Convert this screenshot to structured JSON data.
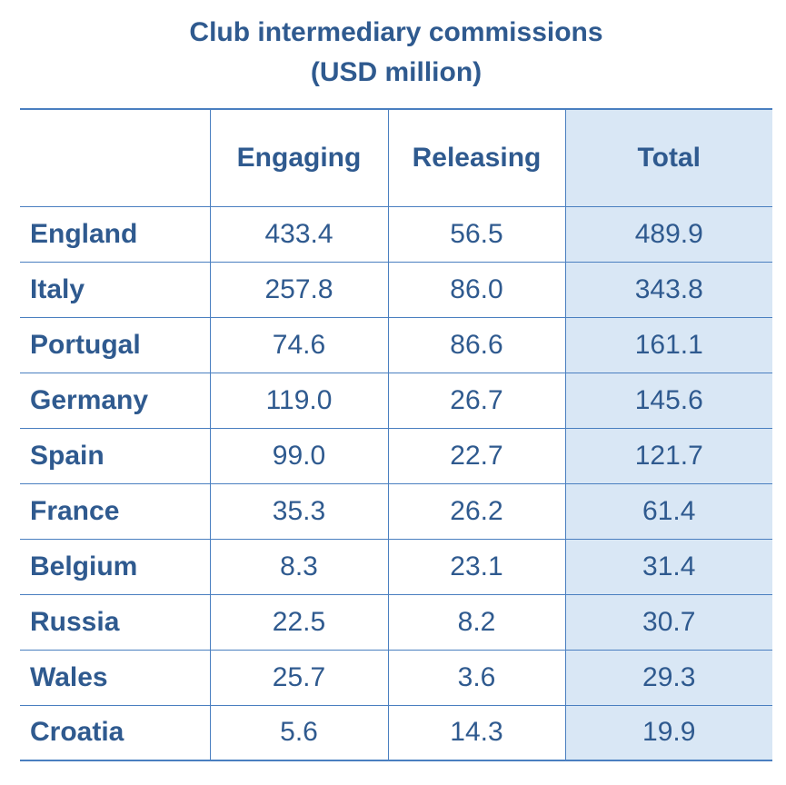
{
  "title_line1": "Club intermediary commissions",
  "title_line2": "(USD million)",
  "chart_data": {
    "type": "table",
    "title": "Club intermediary commissions (USD million)",
    "columns": [
      "",
      "Engaging",
      "Releasing",
      "Total"
    ],
    "rows": [
      {
        "country": "England",
        "engaging": "433.4",
        "releasing": "56.5",
        "total": "489.9"
      },
      {
        "country": "Italy",
        "engaging": "257.8",
        "releasing": "86.0",
        "total": "343.8"
      },
      {
        "country": "Portugal",
        "engaging": "74.6",
        "releasing": "86.6",
        "total": "161.1"
      },
      {
        "country": "Germany",
        "engaging": "119.0",
        "releasing": "26.7",
        "total": "145.6"
      },
      {
        "country": "Spain",
        "engaging": "99.0",
        "releasing": "22.7",
        "total": "121.7"
      },
      {
        "country": "France",
        "engaging": "35.3",
        "releasing": "26.2",
        "total": "61.4"
      },
      {
        "country": "Belgium",
        "engaging": "8.3",
        "releasing": "23.1",
        "total": "31.4"
      },
      {
        "country": "Russia",
        "engaging": "22.5",
        "releasing": "8.2",
        "total": "30.7"
      },
      {
        "country": "Wales",
        "engaging": "25.7",
        "releasing": "3.6",
        "total": "29.3"
      },
      {
        "country": "Croatia",
        "engaging": "5.6",
        "releasing": "14.3",
        "total": "19.9"
      }
    ]
  },
  "colors": {
    "text": "#2f5a8f",
    "border": "#4a7fc0",
    "total_highlight": "#d9e7f5"
  }
}
